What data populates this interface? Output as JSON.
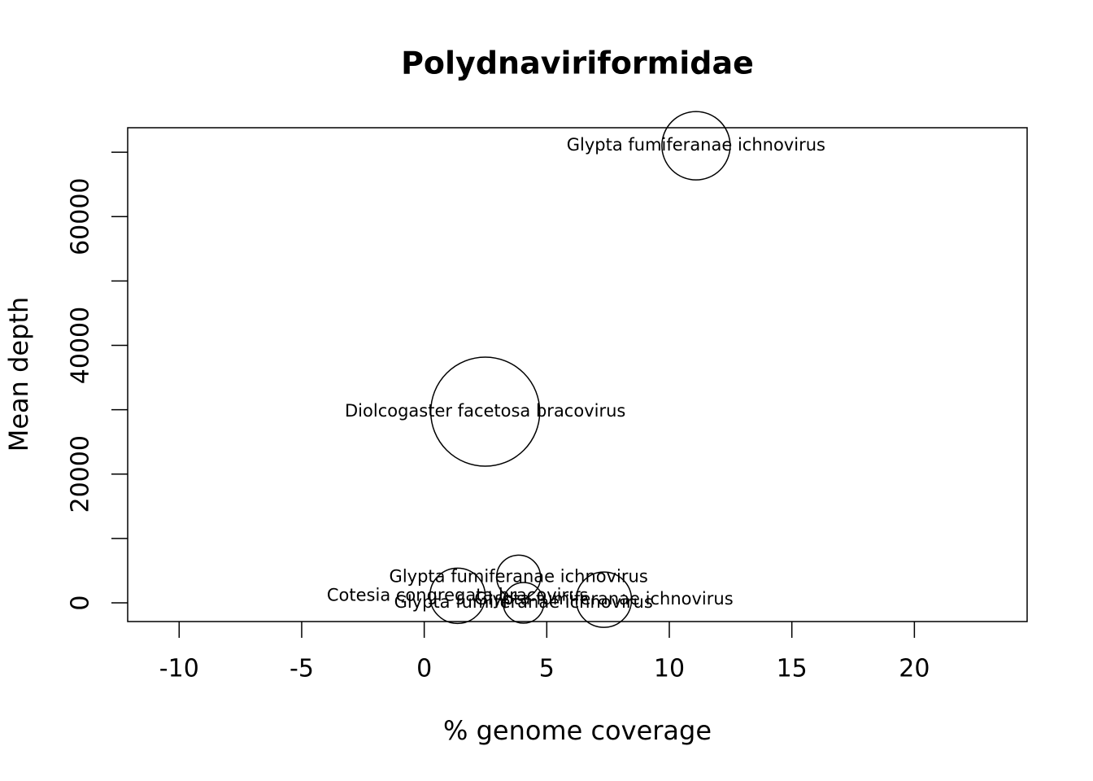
{
  "chart_data": {
    "type": "bubble",
    "title": "Polydnaviriformidae",
    "x_label": "% genome coverage",
    "y_label": "Mean depth",
    "xlim": [
      -12.1,
      24.6
    ],
    "ylim": [
      -2900,
      73800
    ],
    "xticks": [
      -10,
      -5,
      0,
      5,
      10,
      15,
      20
    ],
    "yticks": [
      0,
      20000,
      40000,
      60000
    ],
    "y_minor_ticks": [
      10000,
      30000,
      50000,
      70000
    ],
    "points": [
      {
        "label": "Glypta fumiferanae ichnovirus",
        "x": 11.09,
        "y": 71000,
        "size": 1764
      },
      {
        "label": "Diolcogaster facetosa bracovirus",
        "x": 2.49,
        "y": 29700,
        "size": 4489
      },
      {
        "label": "Glypta fumiferanae ichnovirus",
        "x": 3.85,
        "y": 4000,
        "size": 729
      },
      {
        "label": "Cotesia congregata bracovirus",
        "x": 1.36,
        "y": 1100,
        "size": 1156
      },
      {
        "label": "Glypta fumiferanae ichnovirus",
        "x": 4.05,
        "y": 0,
        "size": 625
      },
      {
        "label": "Glypta fumiferanae ichnovirus",
        "x": 7.33,
        "y": 500,
        "size": 1156
      }
    ]
  }
}
